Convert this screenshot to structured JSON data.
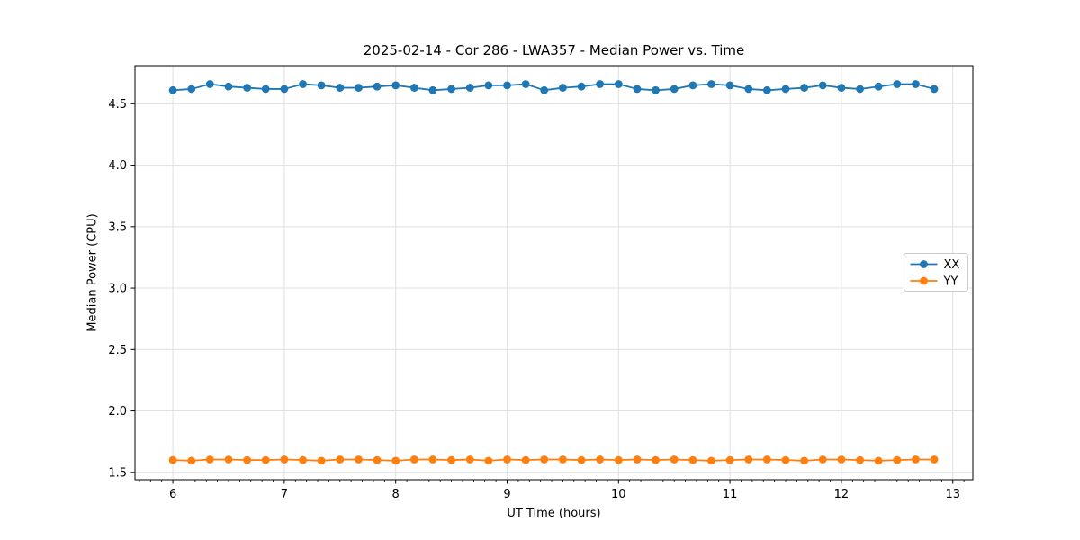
{
  "figure": {
    "background": "#ffffff",
    "text_color": "#000000",
    "grid_color": "#e0e0e0",
    "spine_color": "#000000",
    "legend_border_color": "#cccccc"
  },
  "chart_data": {
    "type": "line",
    "title": "2025-02-14 - Cor 286 - LWA357 - Median Power vs. Time",
    "xlabel": "UT Time (hours)",
    "ylabel": "Median Power (CPU)",
    "xlim": [
      5.66,
      13.18
    ],
    "ylim": [
      1.44,
      4.81
    ],
    "grid": true,
    "legend_position": "center right",
    "x_ticks": {
      "values": [
        6,
        7,
        8,
        9,
        10,
        11,
        12,
        13
      ],
      "labels": [
        "6",
        "7",
        "8",
        "9",
        "10",
        "11",
        "12",
        "13"
      ]
    },
    "x_minor_step": 0.1,
    "y_ticks": {
      "values": [
        1.5,
        2.0,
        2.5,
        3.0,
        3.5,
        4.0,
        4.5
      ],
      "labels": [
        "1.5",
        "2.0",
        "2.5",
        "3.0",
        "3.5",
        "4.0",
        "4.5"
      ]
    },
    "x": [
      6.0,
      6.167,
      6.333,
      6.5,
      6.667,
      6.833,
      7.0,
      7.167,
      7.333,
      7.5,
      7.667,
      7.833,
      8.0,
      8.167,
      8.333,
      8.5,
      8.667,
      8.833,
      9.0,
      9.167,
      9.333,
      9.5,
      9.667,
      9.833,
      10.0,
      10.167,
      10.333,
      10.5,
      10.667,
      10.833,
      11.0,
      11.167,
      11.333,
      11.5,
      11.667,
      11.833,
      12.0,
      12.167,
      12.333,
      12.5,
      12.667,
      12.833
    ],
    "series": [
      {
        "name": "XX",
        "color": "#1f77b4",
        "values": [
          4.61,
          4.62,
          4.66,
          4.64,
          4.63,
          4.62,
          4.62,
          4.66,
          4.65,
          4.63,
          4.63,
          4.64,
          4.65,
          4.63,
          4.61,
          4.62,
          4.63,
          4.65,
          4.65,
          4.66,
          4.61,
          4.63,
          4.64,
          4.66,
          4.66,
          4.62,
          4.61,
          4.62,
          4.65,
          4.66,
          4.65,
          4.62,
          4.61,
          4.62,
          4.63,
          4.65,
          4.63,
          4.62,
          4.64,
          4.66,
          4.66,
          4.62
        ]
      },
      {
        "name": "YY",
        "color": "#ff7f0e",
        "values": [
          1.6,
          1.595,
          1.605,
          1.605,
          1.6,
          1.6,
          1.605,
          1.6,
          1.595,
          1.605,
          1.605,
          1.6,
          1.595,
          1.605,
          1.605,
          1.6,
          1.605,
          1.595,
          1.605,
          1.6,
          1.605,
          1.605,
          1.6,
          1.605,
          1.6,
          1.605,
          1.6,
          1.605,
          1.6,
          1.595,
          1.6,
          1.605,
          1.605,
          1.6,
          1.595,
          1.605,
          1.605,
          1.6,
          1.595,
          1.6,
          1.605,
          1.605
        ]
      }
    ]
  }
}
